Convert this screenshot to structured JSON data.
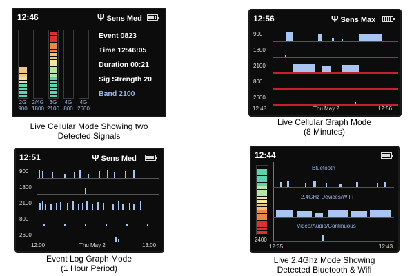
{
  "panels": [
    {
      "time": "12:46",
      "mode_label": "Sens Med",
      "event_line": "Event 0823",
      "time_line": "Time 12:46:05",
      "duration_line": "Duration 00:21",
      "sig_strength_line": "Sig Strength 20",
      "band_line": "Band 2100",
      "bands": [
        {
          "top": "2G",
          "bottom": "900",
          "level_segments": 9,
          "color": "amber-teal"
        },
        {
          "top": "2/4G",
          "bottom": "1800",
          "level_segments": 0,
          "color": "none"
        },
        {
          "top": "3G",
          "bottom": "2100",
          "level_segments": 19,
          "color": "red-teal"
        },
        {
          "top": "4G",
          "bottom": "800",
          "level_segments": 0,
          "color": "none"
        },
        {
          "top": "4G",
          "bottom": "2600",
          "level_segments": 0,
          "color": "none"
        }
      ],
      "caption_line1": "Live Cellular Mode Showing two",
      "caption_line2": "Detected Signals"
    },
    {
      "time": "12:56",
      "mode_label": "Sens Max",
      "rows": [
        "900",
        "1800",
        "2100",
        "800",
        "2600"
      ],
      "x_start": "12:48",
      "x_mid": "Thu May  2",
      "x_end": "12:56",
      "caption_line1": "Live Cellular Graph Mode",
      "caption_line2": "(8 Minutes)"
    },
    {
      "time": "12:51",
      "mode_label": "Sens Med",
      "rows": [
        "900",
        "1800",
        "2100",
        "800",
        "2600"
      ],
      "x_start": "12:00",
      "x_mid": "Thu May  2",
      "x_end": "13:00",
      "caption_line1": "Event Log Graph Mode",
      "caption_line2": "(1 Hour Period)"
    },
    {
      "time": "12:44",
      "sub_labels": [
        "Bluetooth",
        "2.4GHz Devices/WiFi",
        "Video/Audio/Continuous"
      ],
      "y_label": "2400",
      "x_start": "12:35",
      "x_end": "12:43",
      "caption_line1": "Live 2.4Ghz Mode Showing",
      "caption_line2": "Detected Bluetooth & Wifi"
    }
  ],
  "colors": {
    "screen_bg": "#0c0c0c",
    "red_line": "#c8202a",
    "trace_blue": "#a8c4f0",
    "band_text": "#9ab4e6"
  }
}
